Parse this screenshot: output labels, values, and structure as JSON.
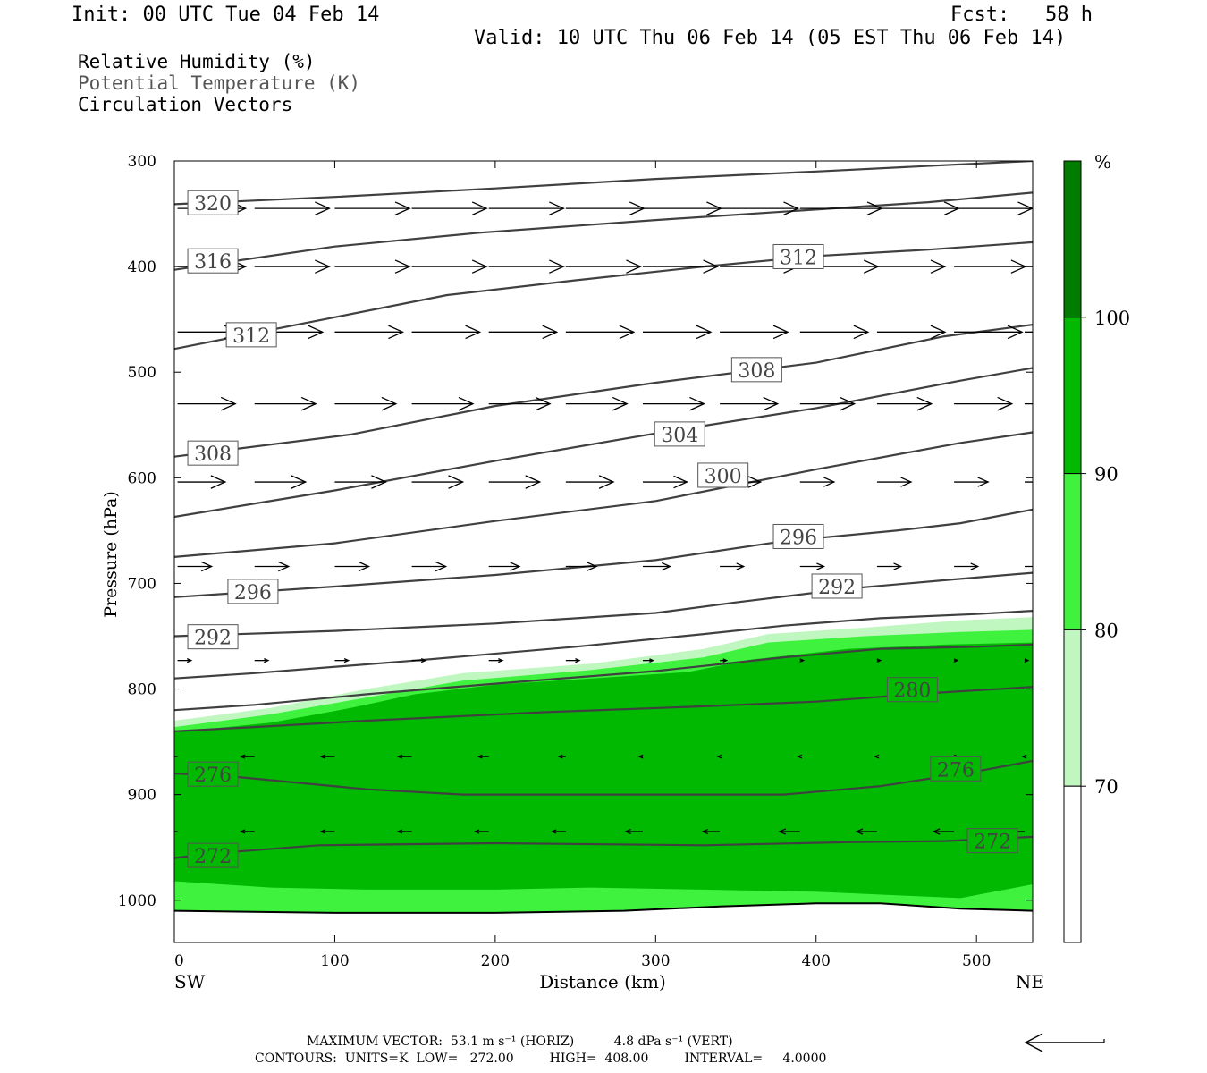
{
  "header": {
    "init": "Init: 00 UTC Tue 04 Feb 14",
    "fcst": "Fcst:   58 h",
    "valid": "Valid: 10 UTC Thu 06 Feb 14 (05 EST Thu 06 Feb 14)"
  },
  "legend": {
    "rh": "Relative Humidity (%)",
    "theta": "Potential Temperature (K)",
    "vectors": "Circulation Vectors"
  },
  "footer": {
    "max_vector": "MAXIMUM VECTOR:  53.1 m s⁻¹ (HORIZ)          4.8 dPa s⁻¹ (VERT)",
    "contours": "CONTOURS:  UNITS=K  LOW=   272.00         HIGH=  408.00         INTERVAL=     4.0000"
  },
  "colors": {
    "rh_70_80": "#c0f7c0",
    "rh_80_90": "#3ef23e",
    "rh_90_100": "#00b900",
    "rh_100": "#007d00",
    "contour": "#404040"
  },
  "chart_data": {
    "type": "cross-section",
    "xlabel": "Distance (km)",
    "ylabel": "Pressure (hPa)",
    "xlim": [
      0,
      535
    ],
    "ylim": [
      1040,
      300
    ],
    "x_ticks": [
      0,
      100,
      200,
      300,
      400,
      500
    ],
    "y_ticks": [
      300,
      400,
      500,
      600,
      700,
      800,
      900,
      1000
    ],
    "x_end_labels": {
      "left": "SW",
      "right": "NE"
    },
    "colorbar": {
      "unit": "%",
      "levels": [
        70,
        80,
        90,
        100
      ],
      "level_labels": [
        "70",
        "80",
        "90",
        "100"
      ]
    },
    "rh_fill": {
      "ge70_top": [
        [
          0,
          830
        ],
        [
          60,
          818
        ],
        [
          120,
          800
        ],
        [
          180,
          785
        ],
        [
          260,
          776
        ],
        [
          330,
          762
        ],
        [
          370,
          748
        ],
        [
          430,
          742
        ],
        [
          490,
          735
        ],
        [
          535,
          732
        ]
      ],
      "ge80_top": [
        [
          0,
          836
        ],
        [
          60,
          824
        ],
        [
          120,
          808
        ],
        [
          180,
          792
        ],
        [
          260,
          782
        ],
        [
          330,
          770
        ],
        [
          370,
          756
        ],
        [
          430,
          750
        ],
        [
          490,
          746
        ],
        [
          535,
          744
        ]
      ],
      "ge90_top": [
        [
          0,
          841
        ],
        [
          60,
          832
        ],
        [
          110,
          818
        ],
        [
          150,
          805
        ],
        [
          200,
          796
        ],
        [
          260,
          790
        ],
        [
          320,
          784
        ],
        [
          360,
          772
        ],
        [
          420,
          762
        ],
        [
          480,
          758
        ],
        [
          535,
          756
        ]
      ],
      "ge90_bottom": [
        [
          0,
          982
        ],
        [
          60,
          988
        ],
        [
          120,
          990
        ],
        [
          200,
          990
        ],
        [
          260,
          988
        ],
        [
          330,
          990
        ],
        [
          400,
          992
        ],
        [
          460,
          996
        ],
        [
          490,
          998
        ],
        [
          535,
          985
        ]
      ],
      "ge80_bottom": [
        [
          0,
          1010
        ],
        [
          100,
          1012
        ],
        [
          200,
          1012
        ],
        [
          280,
          1010
        ],
        [
          340,
          1006
        ],
        [
          400,
          1003
        ],
        [
          440,
          1003
        ],
        [
          490,
          1008
        ],
        [
          535,
          1010
        ]
      ]
    },
    "theta_contours": [
      {
        "value": 272,
        "points": [
          [
            0,
            960
          ],
          [
            30,
            955
          ],
          [
            90,
            948
          ],
          [
            200,
            946
          ],
          [
            330,
            948
          ],
          [
            420,
            945
          ],
          [
            480,
            944
          ],
          [
            535,
            940
          ]
        ]
      },
      {
        "value": 276,
        "points": [
          [
            0,
            880
          ],
          [
            30,
            882
          ],
          [
            120,
            895
          ],
          [
            180,
            900
          ],
          [
            280,
            900
          ],
          [
            380,
            900
          ],
          [
            440,
            892
          ],
          [
            500,
            878
          ],
          [
            535,
            868
          ]
        ]
      },
      {
        "value": 280,
        "points": [
          [
            0,
            840
          ],
          [
            50,
            836
          ],
          [
            120,
            830
          ],
          [
            230,
            822
          ],
          [
            320,
            817
          ],
          [
            400,
            812
          ],
          [
            470,
            804
          ],
          [
            535,
            798
          ]
        ]
      },
      {
        "value": 284,
        "points": [
          [
            0,
            820
          ],
          [
            50,
            815
          ],
          [
            120,
            805
          ],
          [
            200,
            795
          ],
          [
            300,
            783
          ],
          [
            380,
            770
          ],
          [
            440,
            762
          ],
          [
            500,
            760
          ],
          [
            535,
            758
          ]
        ]
      },
      {
        "value": 288,
        "points": [
          [
            0,
            790
          ],
          [
            50,
            785
          ],
          [
            150,
            773
          ],
          [
            250,
            760
          ],
          [
            330,
            748
          ],
          [
            380,
            740
          ],
          [
            440,
            733
          ],
          [
            500,
            729
          ],
          [
            535,
            726
          ]
        ]
      },
      {
        "value": 292,
        "points": [
          [
            0,
            750
          ],
          [
            100,
            745
          ],
          [
            200,
            738
          ],
          [
            300,
            728
          ],
          [
            350,
            718
          ],
          [
            420,
            705
          ],
          [
            480,
            697
          ],
          [
            535,
            690
          ]
        ]
      },
      {
        "value": 296,
        "points": [
          [
            0,
            713
          ],
          [
            100,
            703
          ],
          [
            200,
            692
          ],
          [
            300,
            678
          ],
          [
            380,
            660
          ],
          [
            450,
            650
          ],
          [
            490,
            643
          ],
          [
            535,
            630
          ]
        ]
      },
      {
        "value": 300,
        "points": [
          [
            0,
            675
          ],
          [
            100,
            662
          ],
          [
            200,
            641
          ],
          [
            300,
            622
          ],
          [
            400,
            592
          ],
          [
            490,
            567
          ],
          [
            535,
            557
          ]
        ]
      },
      {
        "value": 304,
        "points": [
          [
            0,
            637
          ],
          [
            100,
            612
          ],
          [
            200,
            584
          ],
          [
            300,
            558
          ],
          [
            400,
            534
          ],
          [
            490,
            508
          ],
          [
            535,
            496
          ]
        ]
      },
      {
        "value": 308,
        "points": [
          [
            0,
            580
          ],
          [
            110,
            559
          ],
          [
            200,
            532
          ],
          [
            300,
            510
          ],
          [
            400,
            491
          ],
          [
            480,
            466
          ],
          [
            535,
            455
          ]
        ]
      },
      {
        "value": 312,
        "points": [
          [
            0,
            478
          ],
          [
            100,
            448
          ],
          [
            170,
            427
          ],
          [
            250,
            413
          ],
          [
            330,
            400
          ],
          [
            400,
            390
          ],
          [
            470,
            384
          ],
          [
            535,
            377
          ]
        ]
      },
      {
        "value": 316,
        "points": [
          [
            0,
            403
          ],
          [
            100,
            381
          ],
          [
            190,
            368
          ],
          [
            300,
            356
          ],
          [
            390,
            347
          ],
          [
            470,
            339
          ],
          [
            535,
            330
          ]
        ]
      },
      {
        "value": 320,
        "points": [
          [
            0,
            341
          ],
          [
            100,
            334
          ],
          [
            200,
            326
          ],
          [
            300,
            317
          ],
          [
            400,
            310
          ],
          [
            480,
            304
          ],
          [
            535,
            300
          ]
        ]
      }
    ],
    "contour_labels": [
      {
        "text": "320",
        "x": 24,
        "p": 340
      },
      {
        "text": "316",
        "x": 24,
        "p": 395
      },
      {
        "text": "312",
        "x": 48,
        "p": 465
      },
      {
        "text": "312",
        "x": 389,
        "p": 391
      },
      {
        "text": "308",
        "x": 363,
        "p": 498
      },
      {
        "text": "308",
        "x": 24,
        "p": 577
      },
      {
        "text": "304",
        "x": 315,
        "p": 559
      },
      {
        "text": "300",
        "x": 342,
        "p": 598
      },
      {
        "text": "296",
        "x": 389,
        "p": 656
      },
      {
        "text": "296",
        "x": 49,
        "p": 708
      },
      {
        "text": "292",
        "x": 413,
        "p": 703
      },
      {
        "text": "292",
        "x": 24,
        "p": 751
      },
      {
        "text": "280",
        "x": 460,
        "p": 801
      },
      {
        "text": "276",
        "x": 24,
        "p": 881
      },
      {
        "text": "276",
        "x": 487,
        "p": 876
      },
      {
        "text": "272",
        "x": 24,
        "p": 958
      },
      {
        "text": "272",
        "x": 510,
        "p": 944
      }
    ],
    "vector_rows": [
      {
        "p": 345,
        "x": [
          2,
          50,
          100,
          148,
          196,
          244,
          292,
          340,
          390,
          438,
          486,
          530
        ],
        "u": [
          40,
          44,
          44,
          44,
          44,
          46,
          46,
          46,
          48,
          48,
          46,
          44
        ]
      },
      {
        "p": 400,
        "x": [
          2,
          50,
          100,
          148,
          196,
          244,
          292,
          340,
          390,
          438,
          486,
          530
        ],
        "u": [
          40,
          44,
          44,
          44,
          44,
          44,
          44,
          46,
          46,
          40,
          42,
          44
        ]
      },
      {
        "p": 462,
        "x": [
          2,
          50,
          100,
          148,
          196,
          244,
          292,
          340,
          390,
          438,
          486,
          530
        ],
        "u": [
          36,
          40,
          40,
          40,
          40,
          40,
          40,
          40,
          40,
          40,
          40,
          40
        ]
      },
      {
        "p": 530,
        "x": [
          2,
          50,
          100,
          148,
          196,
          244,
          292,
          340,
          390,
          438,
          486,
          530
        ],
        "u": [
          34,
          36,
          36,
          36,
          36,
          36,
          36,
          34,
          32,
          32,
          34,
          34
        ]
      },
      {
        "p": 604,
        "x": [
          2,
          50,
          100,
          148,
          196,
          244,
          292,
          340,
          390,
          438,
          486,
          530
        ],
        "u": [
          28,
          30,
          30,
          30,
          30,
          28,
          26,
          24,
          20,
          20,
          20,
          20
        ]
      },
      {
        "p": 684,
        "x": [
          2,
          50,
          100,
          148,
          196,
          244,
          292,
          340,
          390,
          438,
          486,
          530
        ],
        "u": [
          20,
          20,
          20,
          20,
          18,
          18,
          16,
          14,
          14,
          14,
          14,
          14
        ]
      },
      {
        "p": 773,
        "x": [
          2,
          50,
          100,
          148,
          196,
          244,
          292,
          340,
          390,
          438,
          486,
          530
        ],
        "u": [
          8,
          8,
          8,
          8,
          8,
          8,
          6,
          4,
          2,
          2,
          2,
          2
        ]
      },
      {
        "p": 864,
        "x": [
          2,
          50,
          100,
          148,
          196,
          244,
          292,
          340,
          390,
          438,
          486,
          530
        ],
        "u": [
          -8,
          -8,
          -8,
          -8,
          -6,
          -4,
          -2,
          -1,
          -1,
          -1,
          -1,
          -1
        ]
      },
      {
        "p": 935,
        "x": [
          2,
          50,
          100,
          148,
          196,
          244,
          292,
          340,
          390,
          438,
          486,
          530
        ],
        "u": [
          -8,
          -8,
          -8,
          -8,
          -8,
          -8,
          -10,
          -10,
          -12,
          -12,
          -12,
          -12
        ]
      }
    ]
  }
}
